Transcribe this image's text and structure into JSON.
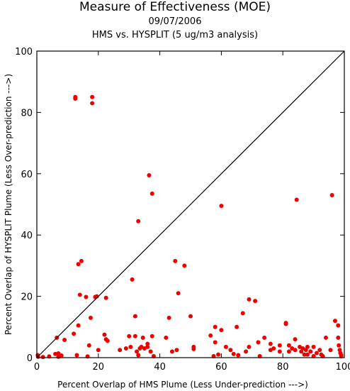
{
  "chart_data": {
    "type": "scatter",
    "title": "Measure of Effectiveness (MOE)",
    "subtitle_date": "09/07/2006",
    "subtitle_desc": "HMS vs. HYSPLIT  (5 ug/m3 analysis)",
    "xlabel": "Percent Overlap of HMS Plume (Less Under-prediction --->)",
    "ylabel": "Percent Overlap of HYSPLIT Plume (Less Over-prediction --->)",
    "xlim": [
      0,
      100
    ],
    "ylim": [
      0,
      100
    ],
    "x_ticks": [
      "0",
      "20",
      "40",
      "60",
      "80",
      "100"
    ],
    "y_ticks": [
      "0",
      "20",
      "40",
      "60",
      "80",
      "100"
    ],
    "diagonal_reference_line": true,
    "grid": false,
    "marker_color": "#ee0000",
    "points": [
      [
        0.4,
        0.3
      ],
      [
        0.3,
        0.8
      ],
      [
        2,
        0.2
      ],
      [
        4,
        0.4
      ],
      [
        6,
        1.2
      ],
      [
        6.5,
        6.5
      ],
      [
        7,
        1.4
      ],
      [
        7,
        0.3
      ],
      [
        8,
        0.7
      ],
      [
        9,
        5.8
      ],
      [
        12,
        7.8
      ],
      [
        12.5,
        84.5
      ],
      [
        12.5,
        85
      ],
      [
        13,
        0.8
      ],
      [
        13.5,
        10.5
      ],
      [
        13.5,
        30.5
      ],
      [
        14,
        20.5
      ],
      [
        14.5,
        31.5
      ],
      [
        16,
        19.8
      ],
      [
        16.5,
        0.4
      ],
      [
        17,
        4
      ],
      [
        17.5,
        13
      ],
      [
        18,
        83
      ],
      [
        18,
        85
      ],
      [
        19,
        19.8
      ],
      [
        19.5,
        20
      ],
      [
        20,
        2.5
      ],
      [
        22,
        7.5
      ],
      [
        22.5,
        6
      ],
      [
        22.5,
        19.5
      ],
      [
        23,
        5.5
      ],
      [
        27,
        2.5
      ],
      [
        29,
        3
      ],
      [
        30,
        7
      ],
      [
        30.5,
        3.5
      ],
      [
        31,
        25.5
      ],
      [
        32,
        13.5
      ],
      [
        32,
        7
      ],
      [
        32.5,
        2
      ],
      [
        33,
        44.5
      ],
      [
        33,
        0.8
      ],
      [
        33.5,
        3
      ],
      [
        34,
        3.5
      ],
      [
        34.5,
        6.5
      ],
      [
        35,
        3
      ],
      [
        36,
        3.5
      ],
      [
        36,
        4.5
      ],
      [
        36.5,
        59.5
      ],
      [
        37,
        2
      ],
      [
        37.5,
        53.5
      ],
      [
        37.5,
        7
      ],
      [
        38,
        0.5
      ],
      [
        42,
        6.5
      ],
      [
        43,
        13
      ],
      [
        44,
        2
      ],
      [
        45,
        31.5
      ],
      [
        45.5,
        2.5
      ],
      [
        46,
        21
      ],
      [
        48,
        30
      ],
      [
        50,
        13.5
      ],
      [
        51,
        3.5
      ],
      [
        51,
        2.8
      ],
      [
        56.5,
        7.2
      ],
      [
        57.5,
        0.5
      ],
      [
        58,
        10
      ],
      [
        58,
        5
      ],
      [
        59,
        1
      ],
      [
        60,
        49.5
      ],
      [
        60,
        9
      ],
      [
        61.5,
        3.5
      ],
      [
        63,
        2.5
      ],
      [
        64,
        1.2
      ],
      [
        65,
        10
      ],
      [
        65.5,
        0.8
      ],
      [
        67,
        14.5
      ],
      [
        68,
        2
      ],
      [
        69,
        3.5
      ],
      [
        69,
        19
      ],
      [
        71,
        18.5
      ],
      [
        72,
        5
      ],
      [
        72.5,
        0.5
      ],
      [
        74,
        6.5
      ],
      [
        76,
        2.5
      ],
      [
        76,
        4.5
      ],
      [
        77,
        3
      ],
      [
        79,
        4
      ],
      [
        79,
        2
      ],
      [
        81,
        11
      ],
      [
        81,
        11.3
      ],
      [
        82,
        2
      ],
      [
        82,
        4
      ],
      [
        83,
        3
      ],
      [
        84,
        2.5
      ],
      [
        84,
        6
      ],
      [
        84.5,
        51.5
      ],
      [
        85.5,
        3.5
      ],
      [
        86,
        2
      ],
      [
        86.5,
        3
      ],
      [
        87,
        1
      ],
      [
        87.5,
        2.5
      ],
      [
        88,
        3.5
      ],
      [
        88,
        1
      ],
      [
        89,
        2
      ],
      [
        90,
        0.5
      ],
      [
        90,
        3.5
      ],
      [
        91,
        1.5
      ],
      [
        92,
        2.5
      ],
      [
        92.5,
        1
      ],
      [
        93,
        0.5
      ],
      [
        94,
        6.5
      ],
      [
        95.5,
        2.5
      ],
      [
        96,
        53
      ],
      [
        97,
        12
      ],
      [
        98,
        10.5
      ],
      [
        98,
        6.5
      ],
      [
        98.2,
        4
      ],
      [
        98.5,
        2.5
      ],
      [
        98.7,
        1.5
      ],
      [
        99,
        0.5
      ],
      [
        99,
        0.8
      ]
    ]
  }
}
